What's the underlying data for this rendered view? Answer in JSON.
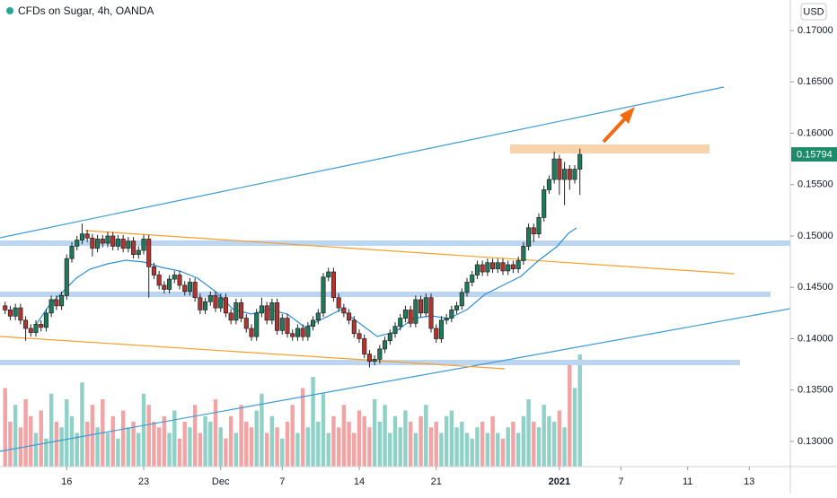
{
  "chart_data": {
    "type": "candlestick",
    "title": "CFDs on Sugar, 4h, OANDA",
    "currency": "USD",
    "ylim": [
      0.12755,
      0.17297
    ],
    "yticks": [
      {
        "value": 0.13,
        "label": "0.13000"
      },
      {
        "value": 0.135,
        "label": "0.13500"
      },
      {
        "value": 0.14,
        "label": "0.14000"
      },
      {
        "value": 0.145,
        "label": "0.14500"
      },
      {
        "value": 0.15,
        "label": "0.15000"
      },
      {
        "value": 0.155,
        "label": "0.15500"
      },
      {
        "value": 0.16,
        "label": "0.16000"
      },
      {
        "value": 0.165,
        "label": "0.16500"
      },
      {
        "value": 0.17,
        "label": "0.17000"
      }
    ],
    "xlim": [
      -1,
      153
    ],
    "xticks": [
      {
        "value": 12,
        "label": "16"
      },
      {
        "value": 27,
        "label": "23"
      },
      {
        "value": 42,
        "label": "Dec"
      },
      {
        "value": 54,
        "label": "7"
      },
      {
        "value": 69,
        "label": "14"
      },
      {
        "value": 84,
        "label": "21"
      },
      {
        "value": 108,
        "label": "2021"
      },
      {
        "value": 120,
        "label": "7"
      },
      {
        "value": 133,
        "label": "11"
      },
      {
        "value": 145,
        "label": "13"
      }
    ],
    "last_price": {
      "value": 0.15794,
      "label": "0.15794"
    },
    "up_color": "#1f7a5c",
    "down_color": "#b23430",
    "volume_up_color": "#8fd1c6",
    "volume_down_color": "#f2a3a3",
    "last_price_color": "#1f8a6a",
    "open": [
      0.1432,
      0.1428,
      0.1422,
      0.143,
      0.1418,
      0.141,
      0.1406,
      0.1414,
      0.1411,
      0.1425,
      0.1438,
      0.1432,
      0.1442,
      0.1478,
      0.149,
      0.1496,
      0.1502,
      0.1498,
      0.1488,
      0.1497,
      0.1493,
      0.15,
      0.149,
      0.1497,
      0.1488,
      0.1495,
      0.1482,
      0.1486,
      0.1497,
      0.147,
      0.1462,
      0.1452,
      0.1448,
      0.1458,
      0.1462,
      0.1452,
      0.1446,
      0.1455,
      0.144,
      0.1428,
      0.1436,
      0.1442,
      0.143,
      0.144,
      0.1425,
      0.1418,
      0.1435,
      0.142,
      0.141,
      0.1402,
      0.1425,
      0.1432,
      0.1418,
      0.1435,
      0.1408,
      0.142,
      0.1405,
      0.1402,
      0.141,
      0.1402,
      0.1412,
      0.1418,
      0.1425,
      0.146,
      0.1465,
      0.144,
      0.143,
      0.1425,
      0.1418,
      0.1405,
      0.14,
      0.1385,
      0.1378,
      0.138,
      0.139,
      0.1398,
      0.1405,
      0.1412,
      0.142,
      0.1428,
      0.1415,
      0.1438,
      0.1425,
      0.144,
      0.141,
      0.14,
      0.1418,
      0.142,
      0.1428,
      0.1432,
      0.1445,
      0.1455,
      0.1462,
      0.1472,
      0.1465,
      0.1474,
      0.1468,
      0.1474,
      0.1466,
      0.1472,
      0.1468,
      0.1476,
      0.149,
      0.1508,
      0.1502,
      0.1518,
      0.1545,
      0.1555,
      0.1575,
      0.1555,
      0.1565,
      0.1555,
      0.1565
    ],
    "high": [
      0.1436,
      0.1432,
      0.1434,
      0.1434,
      0.1422,
      0.1414,
      0.1418,
      0.1418,
      0.1429,
      0.1442,
      0.1442,
      0.1446,
      0.1482,
      0.1494,
      0.15,
      0.1512,
      0.1506,
      0.1502,
      0.1501,
      0.1501,
      0.1504,
      0.1504,
      0.1501,
      0.1501,
      0.1499,
      0.1499,
      0.149,
      0.1501,
      0.1501,
      0.1474,
      0.1466,
      0.1456,
      0.1462,
      0.1466,
      0.1466,
      0.1456,
      0.1459,
      0.1459,
      0.1444,
      0.144,
      0.1446,
      0.1446,
      0.1444,
      0.1444,
      0.1429,
      0.1439,
      0.1439,
      0.1424,
      0.1414,
      0.1429,
      0.144,
      0.1436,
      0.1439,
      0.1439,
      0.1424,
      0.1424,
      0.1409,
      0.1414,
      0.1414,
      0.1416,
      0.1422,
      0.1429,
      0.1464,
      0.1469,
      0.1469,
      0.1444,
      0.1434,
      0.1429,
      0.1422,
      0.1409,
      0.1404,
      0.1389,
      0.1384,
      0.1394,
      0.1402,
      0.1409,
      0.1416,
      0.1424,
      0.1432,
      0.1432,
      0.1442,
      0.1442,
      0.1444,
      0.1444,
      0.1414,
      0.1422,
      0.1424,
      0.1432,
      0.1436,
      0.1449,
      0.1459,
      0.1466,
      0.1476,
      0.1476,
      0.1478,
      0.1478,
      0.1478,
      0.1478,
      0.1476,
      0.1476,
      0.148,
      0.1494,
      0.1512,
      0.1512,
      0.1522,
      0.1549,
      0.1559,
      0.1582,
      0.1579,
      0.1572,
      0.1569,
      0.1569,
      0.1585
    ],
    "low": [
      0.1424,
      0.1418,
      0.1418,
      0.1414,
      0.1398,
      0.1402,
      0.1402,
      0.1407,
      0.1407,
      0.1421,
      0.1428,
      0.1428,
      0.1438,
      0.1474,
      0.1486,
      0.1492,
      0.1494,
      0.148,
      0.1484,
      0.1489,
      0.1489,
      0.1486,
      0.1486,
      0.1484,
      0.1484,
      0.1478,
      0.1478,
      0.1482,
      0.144,
      0.1458,
      0.1448,
      0.1444,
      0.1444,
      0.1454,
      0.1448,
      0.1442,
      0.1442,
      0.1436,
      0.1424,
      0.1424,
      0.1432,
      0.1426,
      0.1426,
      0.1421,
      0.1414,
      0.1414,
      0.1416,
      0.1406,
      0.1398,
      0.1398,
      0.1421,
      0.1414,
      0.1414,
      0.1404,
      0.1404,
      0.1401,
      0.1398,
      0.1398,
      0.1398,
      0.1398,
      0.1408,
      0.1414,
      0.1421,
      0.1456,
      0.1436,
      0.1426,
      0.1421,
      0.1414,
      0.1401,
      0.1396,
      0.1381,
      0.1372,
      0.1374,
      0.1376,
      0.1386,
      0.1394,
      0.1401,
      0.1408,
      0.1416,
      0.1411,
      0.1411,
      0.1421,
      0.1421,
      0.1406,
      0.1396,
      0.1396,
      0.1414,
      0.1416,
      0.1424,
      0.1428,
      0.1441,
      0.1451,
      0.1458,
      0.1461,
      0.1461,
      0.1464,
      0.1464,
      0.1462,
      0.1462,
      0.1464,
      0.1464,
      0.1472,
      0.1486,
      0.1494,
      0.1498,
      0.1514,
      0.1541,
      0.1551,
      0.154,
      0.153,
      0.1545,
      0.1551,
      0.154
    ],
    "close": [
      0.1428,
      0.1422,
      0.143,
      0.1418,
      0.141,
      0.1406,
      0.1414,
      0.1411,
      0.1425,
      0.1438,
      0.1432,
      0.1442,
      0.1478,
      0.149,
      0.1496,
      0.1502,
      0.1498,
      0.1488,
      0.1497,
      0.1493,
      0.15,
      0.149,
      0.1497,
      0.1488,
      0.1495,
      0.1482,
      0.1486,
      0.1497,
      0.147,
      0.1462,
      0.1452,
      0.1448,
      0.1458,
      0.1462,
      0.1452,
      0.1446,
      0.1455,
      0.144,
      0.1428,
      0.1436,
      0.1442,
      0.143,
      0.144,
      0.1425,
      0.1418,
      0.1435,
      0.142,
      0.141,
      0.1402,
      0.1425,
      0.1432,
      0.1418,
      0.1435,
      0.1408,
      0.142,
      0.1405,
      0.1402,
      0.141,
      0.1402,
      0.1412,
      0.1418,
      0.1425,
      0.146,
      0.1465,
      0.144,
      0.143,
      0.1425,
      0.1418,
      0.1405,
      0.14,
      0.1385,
      0.1378,
      0.138,
      0.139,
      0.1398,
      0.1405,
      0.1412,
      0.142,
      0.1428,
      0.1415,
      0.1438,
      0.1425,
      0.144,
      0.141,
      0.14,
      0.1418,
      0.142,
      0.1428,
      0.1432,
      0.1445,
      0.1455,
      0.1462,
      0.1472,
      0.1465,
      0.1474,
      0.1468,
      0.1474,
      0.1466,
      0.1472,
      0.1468,
      0.1476,
      0.149,
      0.1508,
      0.1502,
      0.1518,
      0.1545,
      0.1555,
      0.1575,
      0.1555,
      0.1565,
      0.1555,
      0.1565,
      0.15794
    ],
    "volume": [
      70,
      40,
      55,
      35,
      60,
      45,
      30,
      50,
      25,
      65,
      40,
      35,
      60,
      45,
      30,
      75,
      40,
      55,
      35,
      60,
      30,
      45,
      25,
      50,
      35,
      40,
      30,
      65,
      55,
      40,
      35,
      45,
      30,
      50,
      25,
      40,
      35,
      55,
      30,
      45,
      40,
      60,
      35,
      25,
      45,
      30,
      55,
      40,
      35,
      50,
      65,
      30,
      45,
      35,
      25,
      40,
      55,
      30,
      70,
      35,
      80,
      40,
      65,
      30,
      45,
      35,
      55,
      40,
      30,
      50,
      45,
      35,
      60,
      40,
      55,
      30,
      45,
      35,
      50,
      40,
      30,
      45,
      55,
      35,
      40,
      30,
      45,
      50,
      35,
      40,
      30,
      25,
      35,
      40,
      30,
      45,
      30,
      25,
      35,
      40,
      30,
      45,
      60,
      40,
      35,
      55,
      45,
      40,
      50,
      35,
      95,
      70,
      100
    ]
  }
}
